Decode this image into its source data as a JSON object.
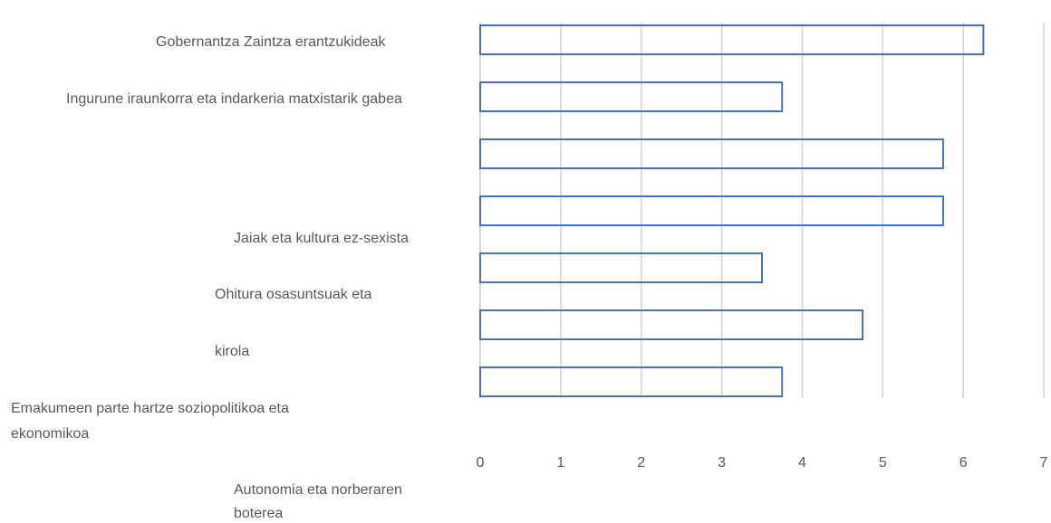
{
  "chart_data": {
    "type": "bar",
    "orientation": "horizontal",
    "categories": [
      [
        "Gobernantza Zaintza erantzukideak"
      ],
      [
        "Ingurune iraunkorra eta indarkeria matxistarik gabea"
      ],
      null,
      [
        "Jaiak eta kultura ez-sexista"
      ],
      [
        "Ohitura osasuntsuak eta",
        "kirola"
      ],
      [
        "Emakumeen parte hartze soziopolitikoa eta",
        "ekonomikoa"
      ],
      [
        "Autonomia eta norberaren",
        "boterea"
      ]
    ],
    "values": [
      6.25,
      3.75,
      5.75,
      5.75,
      3.5,
      4.75,
      3.75
    ],
    "color": "#4a72b8",
    "xlim": [
      0,
      7
    ],
    "xticks": [
      0,
      1,
      2,
      3,
      4,
      5,
      6,
      7
    ],
    "grid": true
  }
}
